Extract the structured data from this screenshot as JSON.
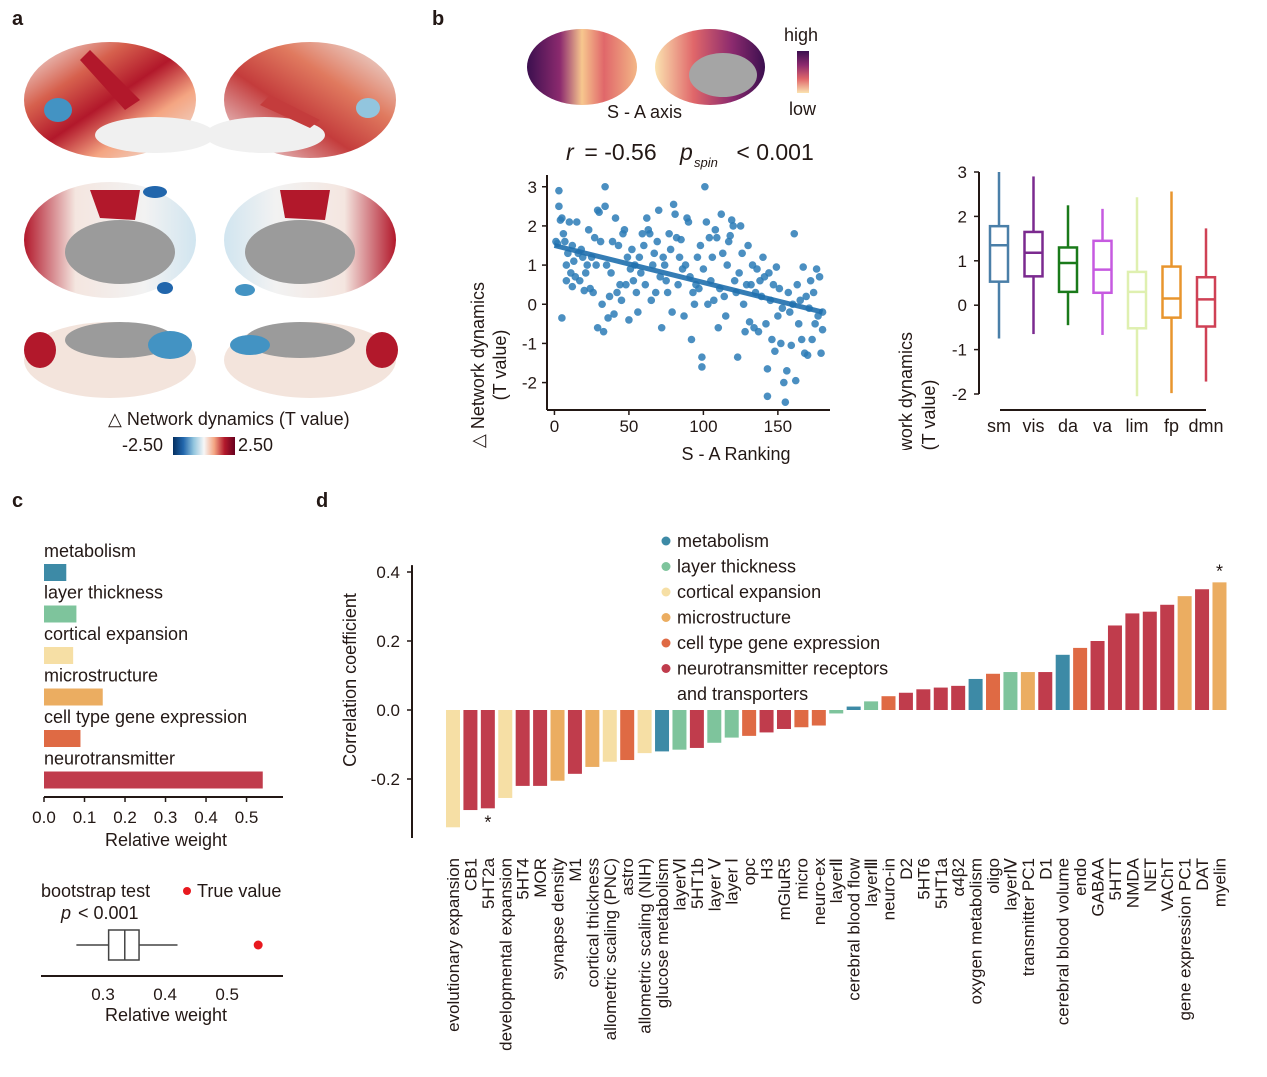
{
  "panels": {
    "a": "a",
    "b": "b",
    "c": "c",
    "d": "d"
  },
  "panel_a": {
    "colorbar_title": "△ Network dynamics (T value)",
    "colorbar_min": "-2.50",
    "colorbar_max": "2.50",
    "colors": {
      "neg": "#2166ac",
      "mid": "#f7f7f7",
      "pos": "#b2182b",
      "medial_wall": "#9b9b9b"
    }
  },
  "panel_b_top": {
    "caption": "S - A axis",
    "legend_high": "high",
    "legend_low": "low",
    "colors": {
      "high": "#3b0f4f",
      "mid": "#b5367a",
      "low": "#fbe3b0"
    }
  },
  "chart_data": [
    {
      "id": "scatter",
      "type": "scatter",
      "title_r": "r",
      "title_rest": " = -0.56  ",
      "title_p": "p",
      "title_p_sub": "spin",
      "title_tail": " < 0.001",
      "xlabel": "S - A Ranking",
      "ylabel_line1": "△ Network dynamics",
      "ylabel_line2": "(T value)",
      "xlim": [
        -5,
        185
      ],
      "ylim": [
        -2.7,
        3.3
      ],
      "xticks": [
        0,
        50,
        100,
        150
      ],
      "yticks": [
        -2,
        -1,
        0,
        1,
        2,
        3
      ],
      "color": "#2c7bb6",
      "fit": {
        "x": [
          0,
          180
        ],
        "y": [
          1.5,
          -0.2
        ]
      },
      "points": [
        [
          1,
          1.6
        ],
        [
          2,
          1.55
        ],
        [
          3,
          2.9
        ],
        [
          3,
          2.5
        ],
        [
          4,
          2.15
        ],
        [
          5,
          2.2
        ],
        [
          5,
          -0.35
        ],
        [
          6,
          1.8
        ],
        [
          7,
          1.6
        ],
        [
          8,
          1.0
        ],
        [
          8,
          0.6
        ],
        [
          9,
          1.3
        ],
        [
          10,
          2.1
        ],
        [
          11,
          0.8
        ],
        [
          12,
          1.5
        ],
        [
          12,
          0.45
        ],
        [
          13,
          1.1
        ],
        [
          14,
          0.7
        ],
        [
          15,
          2.1
        ],
        [
          16,
          1.3
        ],
        [
          17,
          0.6
        ],
        [
          18,
          1.4
        ],
        [
          19,
          1.2
        ],
        [
          20,
          0.35
        ],
        [
          21,
          0.8
        ],
        [
          22,
          1.0
        ],
        [
          23,
          1.9
        ],
        [
          24,
          0.4
        ],
        [
          25,
          1.2
        ],
        [
          26,
          0.3
        ],
        [
          27,
          1.7
        ],
        [
          28,
          1.0
        ],
        [
          29,
          2.4
        ],
        [
          29,
          -0.6
        ],
        [
          30,
          2.35
        ],
        [
          31,
          1.6
        ],
        [
          32,
          0.0
        ],
        [
          33,
          -0.7
        ],
        [
          34,
          3.0
        ],
        [
          34,
          2.5
        ],
        [
          35,
          1.0
        ],
        [
          36,
          -0.35
        ],
        [
          37,
          0.2
        ],
        [
          38,
          0.8
        ],
        [
          39,
          1.6
        ],
        [
          40,
          -0.25
        ],
        [
          41,
          2.2
        ],
        [
          42,
          0.3
        ],
        [
          43,
          1.5
        ],
        [
          44,
          0.5
        ],
        [
          45,
          0.1
        ],
        [
          46,
          1.8
        ],
        [
          47,
          1.9
        ],
        [
          48,
          0.5
        ],
        [
          49,
          1.2
        ],
        [
          50,
          -0.4
        ],
        [
          51,
          0.9
        ],
        [
          52,
          1.4
        ],
        [
          53,
          0.6
        ],
        [
          54,
          1.0
        ],
        [
          55,
          0.3
        ],
        [
          56,
          -0.2
        ],
        [
          57,
          1.2
        ],
        [
          58,
          0.8
        ],
        [
          59,
          1.8
        ],
        [
          60,
          1.5
        ],
        [
          61,
          0.5
        ],
        [
          62,
          2.2
        ],
        [
          63,
          1.9
        ],
        [
          64,
          1.8
        ],
        [
          65,
          0.1
        ],
        [
          66,
          1.0
        ],
        [
          67,
          1.3
        ],
        [
          68,
          0.3
        ],
        [
          69,
          1.6
        ],
        [
          70,
          2.4
        ],
        [
          71,
          0.7
        ],
        [
          72,
          -0.6
        ],
        [
          73,
          1.2
        ],
        [
          74,
          1.0
        ],
        [
          75,
          0.6
        ],
        [
          76,
          0.3
        ],
        [
          77,
          1.8
        ],
        [
          78,
          1.4
        ],
        [
          79,
          -0.2
        ],
        [
          80,
          2.55
        ],
        [
          81,
          2.3
        ],
        [
          82,
          1.7
        ],
        [
          83,
          0.5
        ],
        [
          84,
          1.2
        ],
        [
          85,
          1.65
        ],
        [
          86,
          0.9
        ],
        [
          87,
          -0.3
        ],
        [
          88,
          1.0
        ],
        [
          89,
          2.2
        ],
        [
          90,
          2.1
        ],
        [
          91,
          0.7
        ],
        [
          92,
          -0.9
        ],
        [
          93,
          0.3
        ],
        [
          94,
          0.0
        ],
        [
          95,
          0.5
        ],
        [
          96,
          1.2
        ],
        [
          97,
          0.4
        ],
        [
          98,
          1.5
        ],
        [
          99,
          -1.35
        ],
        [
          99,
          -1.6
        ],
        [
          100,
          0.9
        ],
        [
          101,
          3.0
        ],
        [
          102,
          2.1
        ],
        [
          103,
          0.0
        ],
        [
          104,
          1.7
        ],
        [
          105,
          0.6
        ],
        [
          106,
          1.2
        ],
        [
          107,
          0.1
        ],
        [
          108,
          1.9
        ],
        [
          109,
          1.7
        ],
        [
          110,
          -0.6
        ],
        [
          111,
          0.4
        ],
        [
          112,
          2.3
        ],
        [
          113,
          1.3
        ],
        [
          114,
          0.2
        ],
        [
          115,
          -0.3
        ],
        [
          116,
          1.0
        ],
        [
          117,
          1.6
        ],
        [
          118,
          1.75
        ],
        [
          119,
          2.15
        ],
        [
          120,
          2.0
        ],
        [
          121,
          0.6
        ],
        [
          122,
          0.3
        ],
        [
          123,
          -1.35
        ],
        [
          124,
          0.8
        ],
        [
          125,
          2.0
        ],
        [
          126,
          1.3
        ],
        [
          127,
          0.0
        ],
        [
          128,
          -0.7
        ],
        [
          129,
          0.5
        ],
        [
          130,
          1.5
        ],
        [
          131,
          -0.45
        ],
        [
          132,
          0.5
        ],
        [
          133,
          1.0
        ],
        [
          134,
          -0.6
        ],
        [
          135,
          0.3
        ],
        [
          136,
          0.9
        ],
        [
          137,
          -0.7
        ],
        [
          138,
          0.6
        ],
        [
          139,
          0.2
        ],
        [
          140,
          1.2
        ],
        [
          141,
          0.7
        ],
        [
          142,
          -0.5
        ],
        [
          143,
          -2.35
        ],
        [
          143,
          -1.65
        ],
        [
          144,
          0.8
        ],
        [
          145,
          0.1
        ],
        [
          146,
          -0.9
        ],
        [
          147,
          0.5
        ],
        [
          148,
          -1.2
        ],
        [
          149,
          0.95
        ],
        [
          150,
          -0.3
        ],
        [
          151,
          0.4
        ],
        [
          152,
          -1.0
        ],
        [
          153,
          -0.1
        ],
        [
          154,
          -2.0
        ],
        [
          155,
          -2.5
        ],
        [
          156,
          -1.7
        ],
        [
          157,
          0.3
        ],
        [
          158,
          -0.2
        ],
        [
          159,
          -1.05
        ],
        [
          160,
          0.0
        ],
        [
          161,
          1.8
        ],
        [
          162,
          -1.95
        ],
        [
          163,
          0.5
        ],
        [
          164,
          -0.5
        ],
        [
          165,
          0.1
        ],
        [
          166,
          -0.9
        ],
        [
          167,
          0.95
        ],
        [
          168,
          -1.25
        ],
        [
          169,
          0.2
        ],
        [
          170,
          -1.3
        ],
        [
          171,
          -0.1
        ],
        [
          172,
          0.6
        ],
        [
          173,
          -0.9
        ],
        [
          174,
          0.3
        ],
        [
          175,
          -0.5
        ],
        [
          176,
          0.9
        ],
        [
          177,
          -0.3
        ],
        [
          178,
          0.7
        ],
        [
          179,
          -1.25
        ],
        [
          180,
          -0.2
        ],
        [
          180,
          -0.65
        ]
      ]
    },
    {
      "id": "networks",
      "type": "box",
      "ylabel_line1": "△ Network dynamics",
      "ylabel_line2": "(T value)",
      "ylim": [
        -2,
        3
      ],
      "yticks": [
        -2,
        -1,
        0,
        1,
        2,
        3
      ],
      "categories": [
        "sm",
        "vis",
        "da",
        "va",
        "lim",
        "fp",
        "dmn"
      ],
      "colors": [
        "#4a7fa8",
        "#7b2a8f",
        "#1a7a1a",
        "#c65ae0",
        "#dff0b0",
        "#e8952e",
        "#cf4155"
      ],
      "boxes": [
        {
          "min": -0.75,
          "q1": 0.53,
          "median": 1.35,
          "q3": 1.78,
          "max": 3.0
        },
        {
          "min": -0.65,
          "q1": 0.65,
          "median": 1.18,
          "q3": 1.65,
          "max": 2.9
        },
        {
          "min": -0.45,
          "q1": 0.3,
          "median": 0.95,
          "q3": 1.3,
          "max": 2.25
        },
        {
          "min": -0.67,
          "q1": 0.28,
          "median": 0.8,
          "q3": 1.45,
          "max": 2.17
        },
        {
          "min": -2.05,
          "q1": -0.52,
          "median": 0.3,
          "q3": 0.75,
          "max": 2.43
        },
        {
          "min": -1.98,
          "q1": -0.28,
          "median": 0.15,
          "q3": 0.87,
          "max": 2.56
        },
        {
          "min": -1.72,
          "q1": -0.48,
          "median": 0.13,
          "q3": 0.63,
          "max": 1.73
        }
      ]
    },
    {
      "id": "relative-weight",
      "type": "bar",
      "orientation": "horizontal",
      "xlabel": "Relative weight",
      "xlim": [
        0,
        0.59
      ],
      "xticks": [
        "0.0",
        "0.1",
        "0.2",
        "0.3",
        "0.4",
        "0.5"
      ],
      "categories": [
        "metabolism",
        "layer thickness",
        "cortical expansion",
        "microstructure",
        "cell type gene expression",
        "neurotransmitter"
      ],
      "values": [
        0.055,
        0.08,
        0.072,
        0.145,
        0.09,
        0.54
      ],
      "colors": [
        "#3d8aa6",
        "#7ec49c",
        "#f6dfa5",
        "#ebad61",
        "#df6a44",
        "#c03c4c"
      ]
    },
    {
      "id": "bootstrap",
      "type": "box",
      "orientation": "horizontal",
      "title": "bootstrap test",
      "p_label": "p",
      "p_value": " < 0.001",
      "legend": "True value",
      "xlabel": "Relative weight",
      "xlim": [
        0.2,
        0.59
      ],
      "xticks": [
        "0.3",
        "0.4",
        "0.5"
      ],
      "box": {
        "min": 0.257,
        "q1": 0.309,
        "median": 0.335,
        "q3": 0.358,
        "max": 0.42
      },
      "true_value": 0.55,
      "true_color": "#e8191f"
    },
    {
      "id": "correlation",
      "type": "bar",
      "ylabel": "Correlation coefficient",
      "ylim": [
        -0.37,
        0.42
      ],
      "yticks": [
        "-0.2",
        "0.0",
        "0.2",
        "0.4"
      ],
      "legend": [
        {
          "label": "metabolism",
          "color": "#3d8aa6"
        },
        {
          "label": "layer thickness",
          "color": "#7ec49c"
        },
        {
          "label": "cortical expansion",
          "color": "#f6dfa5"
        },
        {
          "label": "microstructure",
          "color": "#ebad61"
        },
        {
          "label": "cell type gene expression",
          "color": "#df6a44"
        },
        {
          "label": "neurotransmitter receptors",
          "color": "#c03c4c"
        },
        {
          "label": "and transporters",
          "color": ""
        }
      ],
      "categories": [
        "evolutionary expansion",
        "CB1",
        "5HT2a",
        "developmental expansion",
        "5HT4",
        "MOR",
        "synapse density",
        "M1",
        "cortical thickness",
        "allometric scaling (PNC)",
        "astro",
        "allometric scaling (NIH)",
        "glucose metabolism",
        "layerⅥ",
        "5HT1b",
        "layer Ⅴ",
        "layer Ⅰ",
        "opc",
        "H3",
        "mGluR5",
        "micro",
        "neuro-ex",
        "layerⅡ",
        "cerebral blood flow",
        "layerⅢ",
        "neuro-in",
        "D2",
        "5HT6",
        "5HT1a",
        "α4β2",
        "oxygen metabolism",
        "oligo",
        "layerⅣ",
        "transmitter PC1",
        "D1",
        "cerebral blood volume",
        "endo",
        "GABAA",
        "5HTT",
        "NMDA",
        "NET",
        "VAChT",
        "gene expression PC1",
        "DAT",
        "myelin"
      ],
      "values": [
        -0.34,
        -0.29,
        -0.285,
        -0.255,
        -0.22,
        -0.22,
        -0.205,
        -0.185,
        -0.165,
        -0.15,
        -0.145,
        -0.125,
        -0.12,
        -0.115,
        -0.11,
        -0.095,
        -0.08,
        -0.075,
        -0.065,
        -0.055,
        -0.05,
        -0.045,
        -0.01,
        0.01,
        0.025,
        0.04,
        0.05,
        0.06,
        0.065,
        0.07,
        0.09,
        0.105,
        0.11,
        0.11,
        0.11,
        0.16,
        0.18,
        0.2,
        0.245,
        0.28,
        0.285,
        0.305,
        0.33,
        0.35,
        0.37
      ],
      "groups": [
        "cortical expansion",
        "neurotransmitter",
        "neurotransmitter",
        "cortical expansion",
        "neurotransmitter",
        "neurotransmitter",
        "microstructure",
        "neurotransmitter",
        "microstructure",
        "cortical expansion",
        "cell type",
        "cortical expansion",
        "metabolism",
        "layer thickness",
        "neurotransmitter",
        "layer thickness",
        "layer thickness",
        "cell type",
        "neurotransmitter",
        "neurotransmitter",
        "cell type",
        "cell type",
        "layer thickness",
        "metabolism",
        "layer thickness",
        "cell type",
        "neurotransmitter",
        "neurotransmitter",
        "neurotransmitter",
        "neurotransmitter",
        "metabolism",
        "cell type",
        "layer thickness",
        "microstructure",
        "neurotransmitter",
        "metabolism",
        "cell type",
        "neurotransmitter",
        "neurotransmitter",
        "neurotransmitter",
        "neurotransmitter",
        "neurotransmitter",
        "microstructure",
        "neurotransmitter",
        "microstructure"
      ],
      "significant": [
        "5HT2a",
        "myelin"
      ],
      "sig_marker": "*"
    }
  ]
}
